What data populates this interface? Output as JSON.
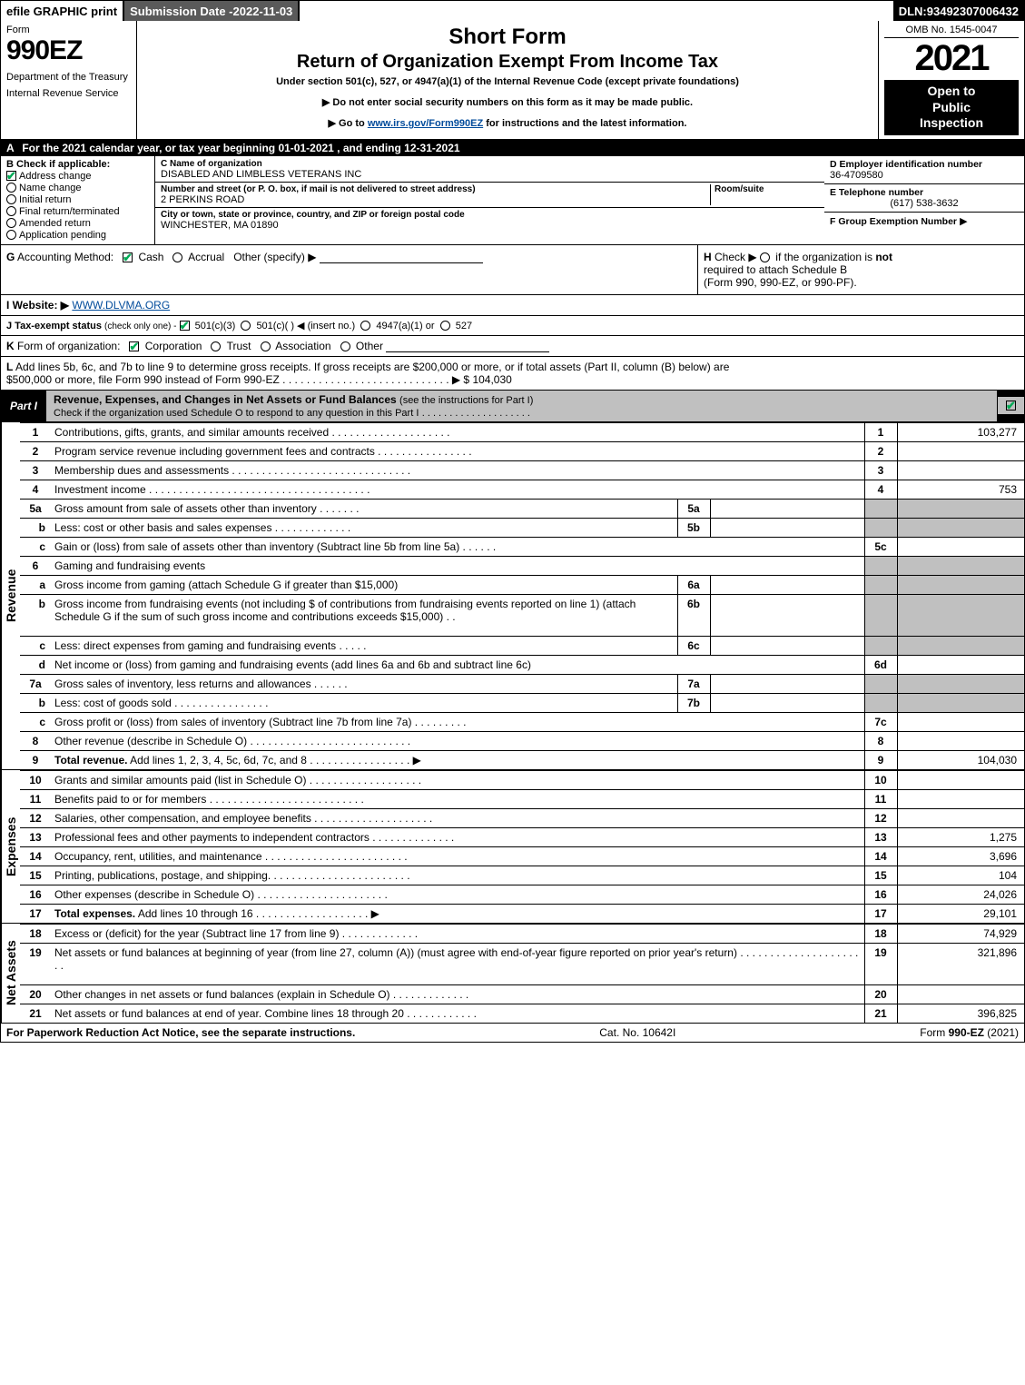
{
  "topbar": {
    "efile": "efile GRAPHIC print",
    "subdate_label": "Submission Date - ",
    "subdate_value": "2022-11-03",
    "dln_label": "DLN: ",
    "dln_value": "93492307006432"
  },
  "header": {
    "form_word": "Form",
    "form_number": "990EZ",
    "dept": "Department of the Treasury",
    "irs": "Internal Revenue Service",
    "title1": "Short Form",
    "title2": "Return of Organization Exempt From Income Tax",
    "subtitle": "Under section 501(c), 527, or 4947(a)(1) of the Internal Revenue Code (except private foundations)",
    "note1": "▶ Do not enter social security numbers on this form as it may be made public.",
    "note2_pre": "▶ Go to ",
    "note2_link": "www.irs.gov/Form990EZ",
    "note2_post": " for instructions and the latest information.",
    "omb": "OMB No. 1545-0047",
    "year": "2021",
    "open_l1": "Open to",
    "open_l2": "Public",
    "open_l3": "Inspection"
  },
  "rowA": {
    "label": "A",
    "text": "For the 2021 calendar year, or tax year beginning 01-01-2021 , and ending 12-31-2021"
  },
  "colB": {
    "label": "B",
    "title": "Check if applicable:",
    "items": [
      {
        "label": "Address change",
        "checked": true
      },
      {
        "label": "Name change",
        "checked": false
      },
      {
        "label": "Initial return",
        "checked": false
      },
      {
        "label": "Final return/terminated",
        "checked": false
      },
      {
        "label": "Amended return",
        "checked": false
      },
      {
        "label": "Application pending",
        "checked": false
      }
    ]
  },
  "colC": {
    "c_label": "C",
    "name_label": "Name of organization",
    "name": "DISABLED AND LIMBLESS VETERANS INC",
    "street_label": "Number and street (or P. O. box, if mail is not delivered to street address)",
    "street": "2 PERKINS ROAD",
    "room_label": "Room/suite",
    "city_label": "City or town, state or province, country, and ZIP or foreign postal code",
    "city": "WINCHESTER, MA  01890"
  },
  "colDEF": {
    "d_label": "D Employer identification number",
    "d_value": "36-4709580",
    "e_label": "E Telephone number",
    "e_value": "(617) 538-3632",
    "f_label": "F Group Exemption Number",
    "f_arrow": "▶"
  },
  "rowG": {
    "label": "G",
    "text": "Accounting Method:",
    "cash": "Cash",
    "accrual": "Accrual",
    "other": "Other (specify) ▶"
  },
  "rowH": {
    "label": "H",
    "text1": "Check ▶",
    "text2": "if the organization is ",
    "not": "not",
    "text3": "required to attach Schedule B",
    "text4": "(Form 990, 990-EZ, or 990-PF)."
  },
  "rowI": {
    "label": "I Website: ▶",
    "value": "WWW.DLVMA.ORG"
  },
  "rowJ": {
    "label": "J Tax-exempt status",
    "note": "(check only one) -",
    "o1": "501(c)(3)",
    "o2": "501(c)(  ) ◀ (insert no.)",
    "o3": "4947(a)(1) or",
    "o4": "527"
  },
  "rowK": {
    "label": "K",
    "text": "Form of organization:",
    "o1": "Corporation",
    "o2": "Trust",
    "o3": "Association",
    "o4": "Other"
  },
  "rowL": {
    "label": "L",
    "text1": "Add lines 5b, 6c, and 7b to line 9 to determine gross receipts. If gross receipts are $200,000 or more, or if total assets (Part II, column (B) below) are",
    "text2": "$500,000 or more, file Form 990 instead of Form 990-EZ",
    "dots": "  .  .  .  .  .  .  .  .  .  .  .  .  .  .  .  .  .  .  .  .  .  .  .  .  .  .  .  .  ▶ $",
    "value": "104,030"
  },
  "part1": {
    "tab": "Part I",
    "title": "Revenue, Expenses, and Changes in Net Assets or Fund Balances",
    "title_sub": "(see the instructions for Part I)",
    "check_line": "Check if the organization used Schedule O to respond to any question in this Part I",
    "check_dots": ".  .  .  .  .  .  .  .  .  .  .  .  .  .  .  .  .  .  .  .",
    "checked": true
  },
  "revenue": {
    "side_label": "Revenue",
    "rows": [
      {
        "n": "1",
        "desc": "Contributions, gifts, grants, and similar amounts received  .  .  .  .  .  .  .  .  .  .  .  .  .  .  .  .  .  .  .  .",
        "rn": "1",
        "rv": "103,277"
      },
      {
        "n": "2",
        "desc": "Program service revenue including government fees and contracts  .  .  .  .  .  .  .  .  .  .  .  .  .  .  .  .",
        "rn": "2",
        "rv": ""
      },
      {
        "n": "3",
        "desc": "Membership dues and assessments  .  .  .  .  .  .  .  .  .  .  .  .  .  .  .  .  .  .  .  .  .  .  .  .  .  .  .  .  .  .",
        "rn": "3",
        "rv": ""
      },
      {
        "n": "4",
        "desc": "Investment income  .  .  .  .  .  .  .  .  .  .  .  .  .  .  .  .  .  .  .  .  .  .  .  .  .  .  .  .  .  .  .  .  .  .  .  .  .",
        "rn": "4",
        "rv": "753"
      },
      {
        "n": "5a",
        "desc": "Gross amount from sale of assets other than inventory  .  .  .  .  .  .  .",
        "inn": "5a",
        "shade": true
      },
      {
        "n": "b",
        "desc": "Less: cost or other basis and sales expenses  .  .  .  .  .  .  .  .  .  .  .  .  .",
        "inn": "5b",
        "shade": true
      },
      {
        "n": "c",
        "desc": "Gain or (loss) from sale of assets other than inventory (Subtract line 5b from line 5a)  .  .  .  .  .  .",
        "rn": "5c",
        "rv": ""
      },
      {
        "n": "6",
        "desc": "Gaming and fundraising events",
        "shade": true,
        "noval": true
      },
      {
        "n": "a",
        "desc": "Gross income from gaming (attach Schedule G if greater than $15,000)",
        "inn": "6a",
        "shade": true
      },
      {
        "n": "b",
        "desc": "Gross income from fundraising events (not including $                          of contributions from fundraising events reported on line 1) (attach Schedule G if the sum of such gross income and contributions exceeds $15,000)     .   .",
        "inn": "6b",
        "shade": true,
        "tall": true
      },
      {
        "n": "c",
        "desc": "Less: direct expenses from gaming and fundraising events  .  .  .  .  .",
        "inn": "6c",
        "shade": true
      },
      {
        "n": "d",
        "desc": "Net income or (loss) from gaming and fundraising events (add lines 6a and 6b and subtract line 6c)",
        "rn": "6d",
        "rv": ""
      },
      {
        "n": "7a",
        "desc": "Gross sales of inventory, less returns and allowances  .  .  .  .  .  .",
        "inn": "7a",
        "shade": true
      },
      {
        "n": "b",
        "desc": "Less: cost of goods sold        .  .  .  .  .  .  .  .  .  .  .  .  .  .  .  .",
        "inn": "7b",
        "shade": true
      },
      {
        "n": "c",
        "desc": "Gross profit or (loss) from sales of inventory (Subtract line 7b from line 7a)  .  .  .  .  .  .  .  .  .",
        "rn": "7c",
        "rv": ""
      },
      {
        "n": "8",
        "desc": "Other revenue (describe in Schedule O)  .  .  .  .  .  .  .  .  .  .  .  .  .  .  .  .  .  .  .  .  .  .  .  .  .  .  .",
        "rn": "8",
        "rv": ""
      },
      {
        "n": "9",
        "desc": "Total revenue. Add lines 1, 2, 3, 4, 5c, 6d, 7c, and 8   .  .  .  .  .  .  .  .  .  .  .  .  .  .  .  .  .   ▶",
        "rn": "9",
        "rv": "104,030",
        "bold": true
      }
    ]
  },
  "expenses": {
    "side_label": "Expenses",
    "rows": [
      {
        "n": "10",
        "desc": "Grants and similar amounts paid (list in Schedule O)  .  .  .  .  .  .  .  .  .  .  .  .  .  .  .  .  .  .  .",
        "rn": "10",
        "rv": ""
      },
      {
        "n": "11",
        "desc": "Benefits paid to or for members      .  .  .  .  .  .  .  .  .  .  .  .  .  .  .  .  .  .  .  .  .  .  .  .  .  .",
        "rn": "11",
        "rv": ""
      },
      {
        "n": "12",
        "desc": "Salaries, other compensation, and employee benefits .  .  .  .  .  .  .  .  .  .  .  .  .  .  .  .  .  .  .  .",
        "rn": "12",
        "rv": ""
      },
      {
        "n": "13",
        "desc": "Professional fees and other payments to independent contractors  .  .  .  .  .  .  .  .  .  .  .  .  .  .",
        "rn": "13",
        "rv": "1,275"
      },
      {
        "n": "14",
        "desc": "Occupancy, rent, utilities, and maintenance .  .  .  .  .  .  .  .  .  .  .  .  .  .  .  .  .  .  .  .  .  .  .  .",
        "rn": "14",
        "rv": "3,696"
      },
      {
        "n": "15",
        "desc": "Printing, publications, postage, and shipping.  .  .  .  .  .  .  .  .  .  .  .  .  .  .  .  .  .  .  .  .  .  .  .",
        "rn": "15",
        "rv": "104"
      },
      {
        "n": "16",
        "desc": "Other expenses (describe in Schedule O)      .  .  .  .  .  .  .  .  .  .  .  .  .  .  .  .  .  .  .  .  .  .",
        "rn": "16",
        "rv": "24,026"
      },
      {
        "n": "17",
        "desc": "Total expenses. Add lines 10 through 16      .  .  .  .  .  .  .  .  .  .  .  .  .  .  .  .  .  .  .   ▶",
        "rn": "17",
        "rv": "29,101",
        "bold": true
      }
    ]
  },
  "netassets": {
    "side_label": "Net Assets",
    "rows": [
      {
        "n": "18",
        "desc": "Excess or (deficit) for the year (Subtract line 17 from line 9)        .  .  .  .  .  .  .  .  .  .  .  .  .",
        "rn": "18",
        "rv": "74,929"
      },
      {
        "n": "19",
        "desc": "Net assets or fund balances at beginning of year (from line 27, column (A)) (must agree with end-of-year figure reported on prior year's return) .  .  .  .  .  .  .  .  .  .  .  .  .  .  .  .  .  .  .  .  .  .",
        "rn": "19",
        "rv": "321,896",
        "tall": true
      },
      {
        "n": "20",
        "desc": "Other changes in net assets or fund balances (explain in Schedule O) .  .  .  .  .  .  .  .  .  .  .  .  .",
        "rn": "20",
        "rv": ""
      },
      {
        "n": "21",
        "desc": "Net assets or fund balances at end of year. Combine lines 18 through 20 .  .  .  .  .  .  .  .  .  .  .  .",
        "rn": "21",
        "rv": "396,825"
      }
    ]
  },
  "footer": {
    "left": "For Paperwork Reduction Act Notice, see the separate instructions.",
    "mid": "Cat. No. 10642I",
    "right_pre": "Form ",
    "right_bold": "990-EZ",
    "right_post": " (2021)"
  }
}
